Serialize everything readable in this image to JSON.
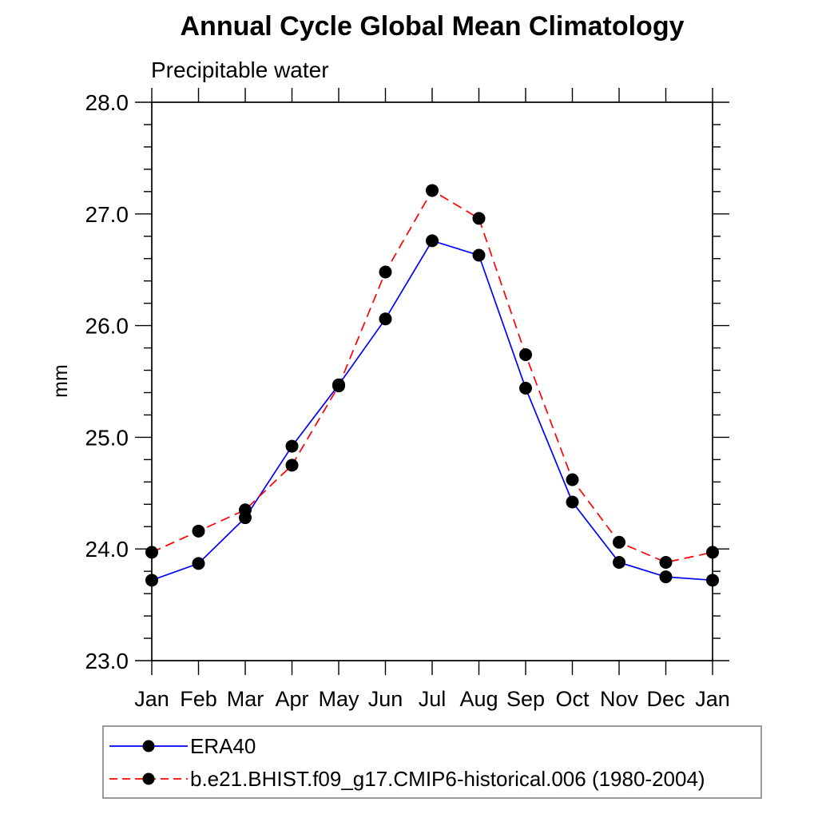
{
  "chart_data": {
    "type": "line",
    "title": "Annual Cycle Global Mean Climatology",
    "subtitle": "Precipitable water",
    "ylabel": "mm",
    "categories": [
      "Jan",
      "Feb",
      "Mar",
      "Apr",
      "May",
      "Jun",
      "Jul",
      "Aug",
      "Sep",
      "Oct",
      "Nov",
      "Dec",
      "Jan"
    ],
    "ylim": [
      23.0,
      28.0
    ],
    "ytick_major_labels": [
      "23.0",
      "24.0",
      "25.0",
      "26.0",
      "27.0",
      "28.0"
    ],
    "ytick_minor_step": 0.2,
    "grid": false,
    "legend_position": "bottom",
    "colors": {
      "axis": "#000000",
      "marker": "#000000",
      "legend_border": "#999999",
      "background": "#ffffff"
    },
    "series": [
      {
        "name": "ERA40",
        "line_style": "solid",
        "color": "#0000ff",
        "marker": "filled-circle",
        "marker_color": "#000000",
        "values": [
          23.72,
          23.87,
          24.28,
          24.92,
          25.47,
          26.06,
          26.76,
          26.63,
          25.44,
          24.42,
          23.88,
          23.75,
          23.72
        ]
      },
      {
        "name": "b.e21.BHIST.f09_g17.CMIP6-historical.006 (1980-2004)",
        "line_style": "dashed",
        "color": "#ff0000",
        "marker": "filled-circle",
        "marker_color": "#000000",
        "values": [
          23.97,
          24.16,
          24.35,
          24.75,
          25.46,
          26.48,
          27.21,
          26.96,
          25.74,
          24.62,
          24.06,
          23.88,
          23.97
        ]
      }
    ]
  }
}
